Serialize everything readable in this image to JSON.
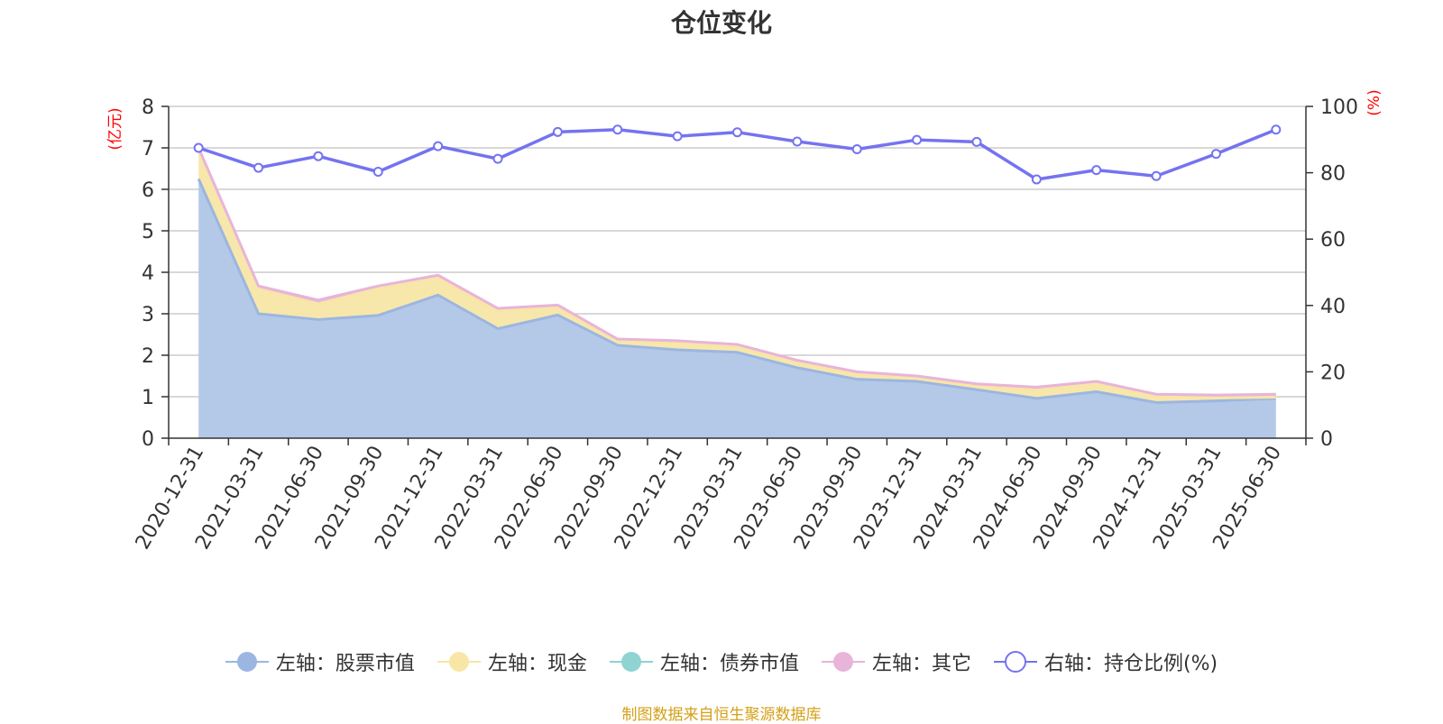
{
  "title": "仓位变化",
  "source": "制图数据来自恒生聚源数据库",
  "colors": {
    "stock": "#9bb6e0",
    "stock_fill": "#b4c9e8",
    "cash": "#f8e6a6",
    "bond": "#8fd3d3",
    "other": "#e8b4da",
    "ratio": "#7473f0",
    "axis_unit": "#ff0000",
    "grid": "#cccccc",
    "source": "#d4a017"
  },
  "chart_data": {
    "type": "area",
    "title": "仓位变化",
    "left_axis_label": "(亿元)",
    "right_axis_label": "(%)",
    "ylim_left": [
      0,
      8
    ],
    "yticks_left": [
      0,
      1,
      2,
      3,
      4,
      5,
      6,
      7,
      8
    ],
    "ylim_right": [
      0,
      100
    ],
    "yticks_right": [
      0,
      20,
      40,
      60,
      80,
      100
    ],
    "grid": true,
    "stacked": true,
    "legend_position": "bottom",
    "categories": [
      "2020-12-31",
      "2021-03-31",
      "2021-06-30",
      "2021-09-30",
      "2021-12-31",
      "2022-03-31",
      "2022-06-30",
      "2022-09-30",
      "2022-12-31",
      "2023-03-31",
      "2023-06-30",
      "2023-09-30",
      "2023-12-31",
      "2024-03-31",
      "2024-06-30",
      "2024-09-30",
      "2024-12-31",
      "2025-03-31",
      "2025-06-30"
    ],
    "series": [
      {
        "name": "左轴：股票市值",
        "axis": "left",
        "type": "area",
        "values": [
          6.25,
          3.0,
          2.86,
          2.96,
          3.45,
          2.64,
          2.97,
          2.24,
          2.13,
          2.07,
          1.7,
          1.42,
          1.37,
          1.17,
          0.96,
          1.12,
          0.86,
          0.9,
          0.96
        ]
      },
      {
        "name": "左轴：现金",
        "axis": "left",
        "type": "area",
        "values": [
          0.7,
          0.6,
          0.38,
          0.65,
          0.42,
          0.43,
          0.18,
          0.1,
          0.16,
          0.13,
          0.12,
          0.12,
          0.07,
          0.08,
          0.2,
          0.19,
          0.14,
          0.07,
          0.03
        ]
      },
      {
        "name": "左轴：债券市值",
        "axis": "left",
        "type": "area",
        "values": [
          0,
          0,
          0,
          0,
          0,
          0,
          0,
          0,
          0,
          0,
          0,
          0,
          0,
          0,
          0,
          0,
          0,
          0,
          0
        ]
      },
      {
        "name": "左轴：其它",
        "axis": "left",
        "type": "area",
        "values": [
          0.05,
          0.07,
          0.09,
          0.06,
          0.06,
          0.06,
          0.06,
          0.05,
          0.06,
          0.06,
          0.06,
          0.06,
          0.06,
          0.06,
          0.07,
          0.06,
          0.06,
          0.07,
          0.07
        ]
      },
      {
        "name": "右轴：持仓比例(%)",
        "axis": "right",
        "type": "line",
        "values": [
          87.5,
          81.5,
          85.0,
          80.3,
          88.0,
          84.2,
          92.3,
          93.0,
          91.0,
          92.2,
          89.4,
          87.1,
          89.9,
          89.3,
          78.0,
          80.8,
          79.0,
          85.7,
          93.0
        ]
      }
    ]
  }
}
